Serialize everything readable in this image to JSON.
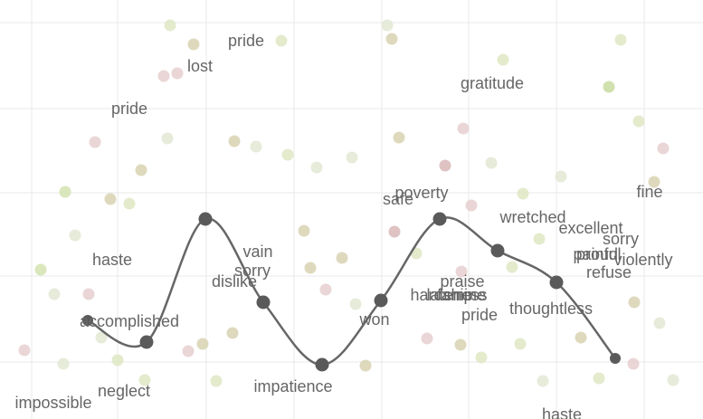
{
  "chart_data": {
    "type": "scatter",
    "xlim": [
      0,
      777
    ],
    "ylim": [
      0,
      463
    ],
    "xticks": [
      35,
      130,
      228,
      325,
      422,
      518,
      615,
      712
    ],
    "yticks": [
      63,
      158,
      250,
      343,
      438
    ],
    "grid": true,
    "background_points": {
      "x": [
        188,
        214,
        311,
        428,
        433,
        556,
        686,
        673,
        181,
        196,
        105,
        122,
        143,
        156,
        185,
        259,
        283,
        318,
        350,
        389,
        441,
        492,
        512,
        543,
        521,
        578,
        733,
        706,
        723,
        45,
        72,
        83,
        60,
        98,
        112,
        130,
        208,
        224,
        239,
        257,
        336,
        343,
        360,
        378,
        393,
        460,
        472,
        509,
        532,
        575,
        600,
        642,
        662,
        701,
        729,
        744,
        27,
        70,
        160,
        404,
        436,
        510,
        566,
        596,
        620,
        700
      ],
      "y": [
        435,
        414,
        418,
        435,
        420,
        397,
        419,
        367,
        379,
        382,
        306,
        243,
        238,
        275,
        310,
        307,
        301,
        292,
        278,
        289,
        311,
        280,
        321,
        283,
        236,
        249,
        299,
        329,
        262,
        165,
        251,
        203,
        138,
        138,
        90,
        65,
        75,
        83,
        42,
        95,
        208,
        167,
        143,
        178,
        127,
        183,
        89,
        82,
        68,
        83,
        42,
        90,
        45,
        129,
        106,
        43,
        76,
        61,
        43,
        59,
        207,
        163,
        168,
        199,
        268,
        61
      ],
      "colors": [
        "#dfe8c4",
        "#d8d2b2",
        "#dfe8c4",
        "#e3e8d4",
        "#d8d2b2",
        "#dfe8c4",
        "#dfe8c4",
        "#c9dca0",
        "#e6cfcf",
        "#e6cfcf",
        "#e6cfcf",
        "#d8d2b2",
        "#dfe8c4",
        "#d8d2b2",
        "#e3e8d4",
        "#d8d2b2",
        "#e3e8d4",
        "#dfe8c4",
        "#e3e8d4",
        "#e3e8d4",
        "#d8d2b2",
        "#d9b8b8",
        "#e6cfcf",
        "#e3e8d4",
        "#e6cfcf",
        "#dfe8c4",
        "#e6cfcf",
        "#dfe8c4",
        "#d8d2b2",
        "#d3e3b0",
        "#d3e3b0",
        "#e3e8d4",
        "#e3e8d4",
        "#e6cfcf",
        "#e3e8d4",
        "#dfe8c4",
        "#e6cfcf",
        "#d8d2b2",
        "#dfe8c4",
        "#d8d2b2",
        "#d8d2b2",
        "#d8d2b2",
        "#e6cfcf",
        "#d8d2b2",
        "#e3e8d4",
        "#dfe8c4",
        "#e6cfcf",
        "#d8d2b2",
        "#dfe8c4",
        "#dfe8c4",
        "#e3e8d4",
        "#d8d2b2",
        "#dfe8c4",
        "#d8d2b2",
        "#e3e8d4",
        "#e3e8d4",
        "#e6cfcf",
        "#e3e8d4",
        "#dfe8c4",
        "#d8d2b2",
        "#d9b8b8",
        "#e6cfcf",
        "#dfe8c4",
        "#dfe8c4",
        "#e3e8d4",
        "#e6cfcf"
      ]
    },
    "path_points": {
      "color": "#5a5a5a",
      "x": [
        97,
        162,
        227,
        291,
        356,
        421,
        486,
        550,
        615,
        680
      ],
      "y": [
        109,
        85,
        221,
        129,
        60,
        131,
        221,
        186,
        151,
        67
      ]
    },
    "words": {
      "labels": [
        "pride",
        "lost",
        "pride",
        "gratitude",
        "safe",
        "poverty",
        "wretched",
        "fine",
        "excellent",
        "sorry",
        "proud",
        "painful",
        "violently",
        "refuse",
        "haste",
        "vain",
        "sorry",
        "dislike",
        "accomplished",
        "praise",
        "hardship",
        "lateness",
        "famine",
        "won",
        "pride",
        "thoughtless",
        "neglect",
        "impatience",
        "impossible",
        "haste"
      ],
      "x": [
        272,
        221,
        143,
        544,
        440,
        466,
        589,
        718,
        653,
        686,
        660,
        660,
        711,
        673,
        124,
        285,
        279,
        259,
        143,
        511,
        488,
        505,
        510,
        414,
        530,
        609,
        137,
        324,
        59,
        621
      ],
      "y": [
        417,
        389,
        342,
        370,
        242,
        249,
        222,
        250,
        210,
        198,
        181,
        181,
        175,
        161,
        175,
        184,
        163,
        151,
        107,
        151,
        136,
        136,
        136,
        109,
        114,
        121,
        30,
        35,
        17,
        4
      ]
    }
  }
}
